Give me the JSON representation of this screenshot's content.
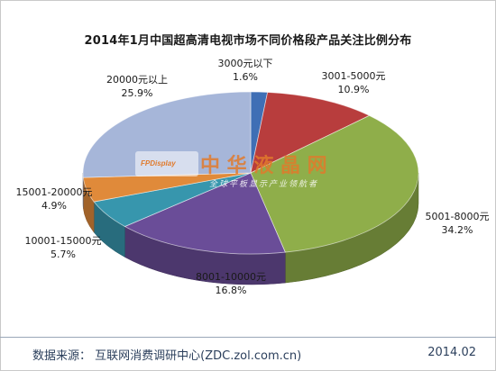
{
  "chart_data": {
    "type": "pie",
    "title": "2014年1月中国超高清电视市场不同价格段产品关注比例分布",
    "slices": [
      {
        "label": "3000元以下",
        "value": 1.6,
        "value_text": "1.6%",
        "color": "#3f6fb5"
      },
      {
        "label": "3001-5000元",
        "value": 10.9,
        "value_text": "10.9%",
        "color": "#b83d3d"
      },
      {
        "label": "5001-8000元",
        "value": 34.2,
        "value_text": "34.2%",
        "color": "#8fae4a"
      },
      {
        "label": "8001-10000元",
        "value": 16.8,
        "value_text": "16.8%",
        "color": "#6a4d98"
      },
      {
        "label": "10001-15000元",
        "value": 5.7,
        "value_text": "5.7%",
        "color": "#3796ad"
      },
      {
        "label": "15001-20000元",
        "value": 4.9,
        "value_text": "4.9%",
        "color": "#e08a3a"
      },
      {
        "label": "20000元以上",
        "value": 25.9,
        "value_text": "25.9%",
        "color": "#a6b6d9"
      }
    ]
  },
  "watermark": {
    "logo_text": "FPDisplay",
    "name": "中 华 液 晶 网",
    "slogan": "全球平板显示产业领航者"
  },
  "footer": {
    "source": "数据来源：  互联网消费调研中心(ZDC.zol.com.cn)",
    "date": "2014.02"
  }
}
